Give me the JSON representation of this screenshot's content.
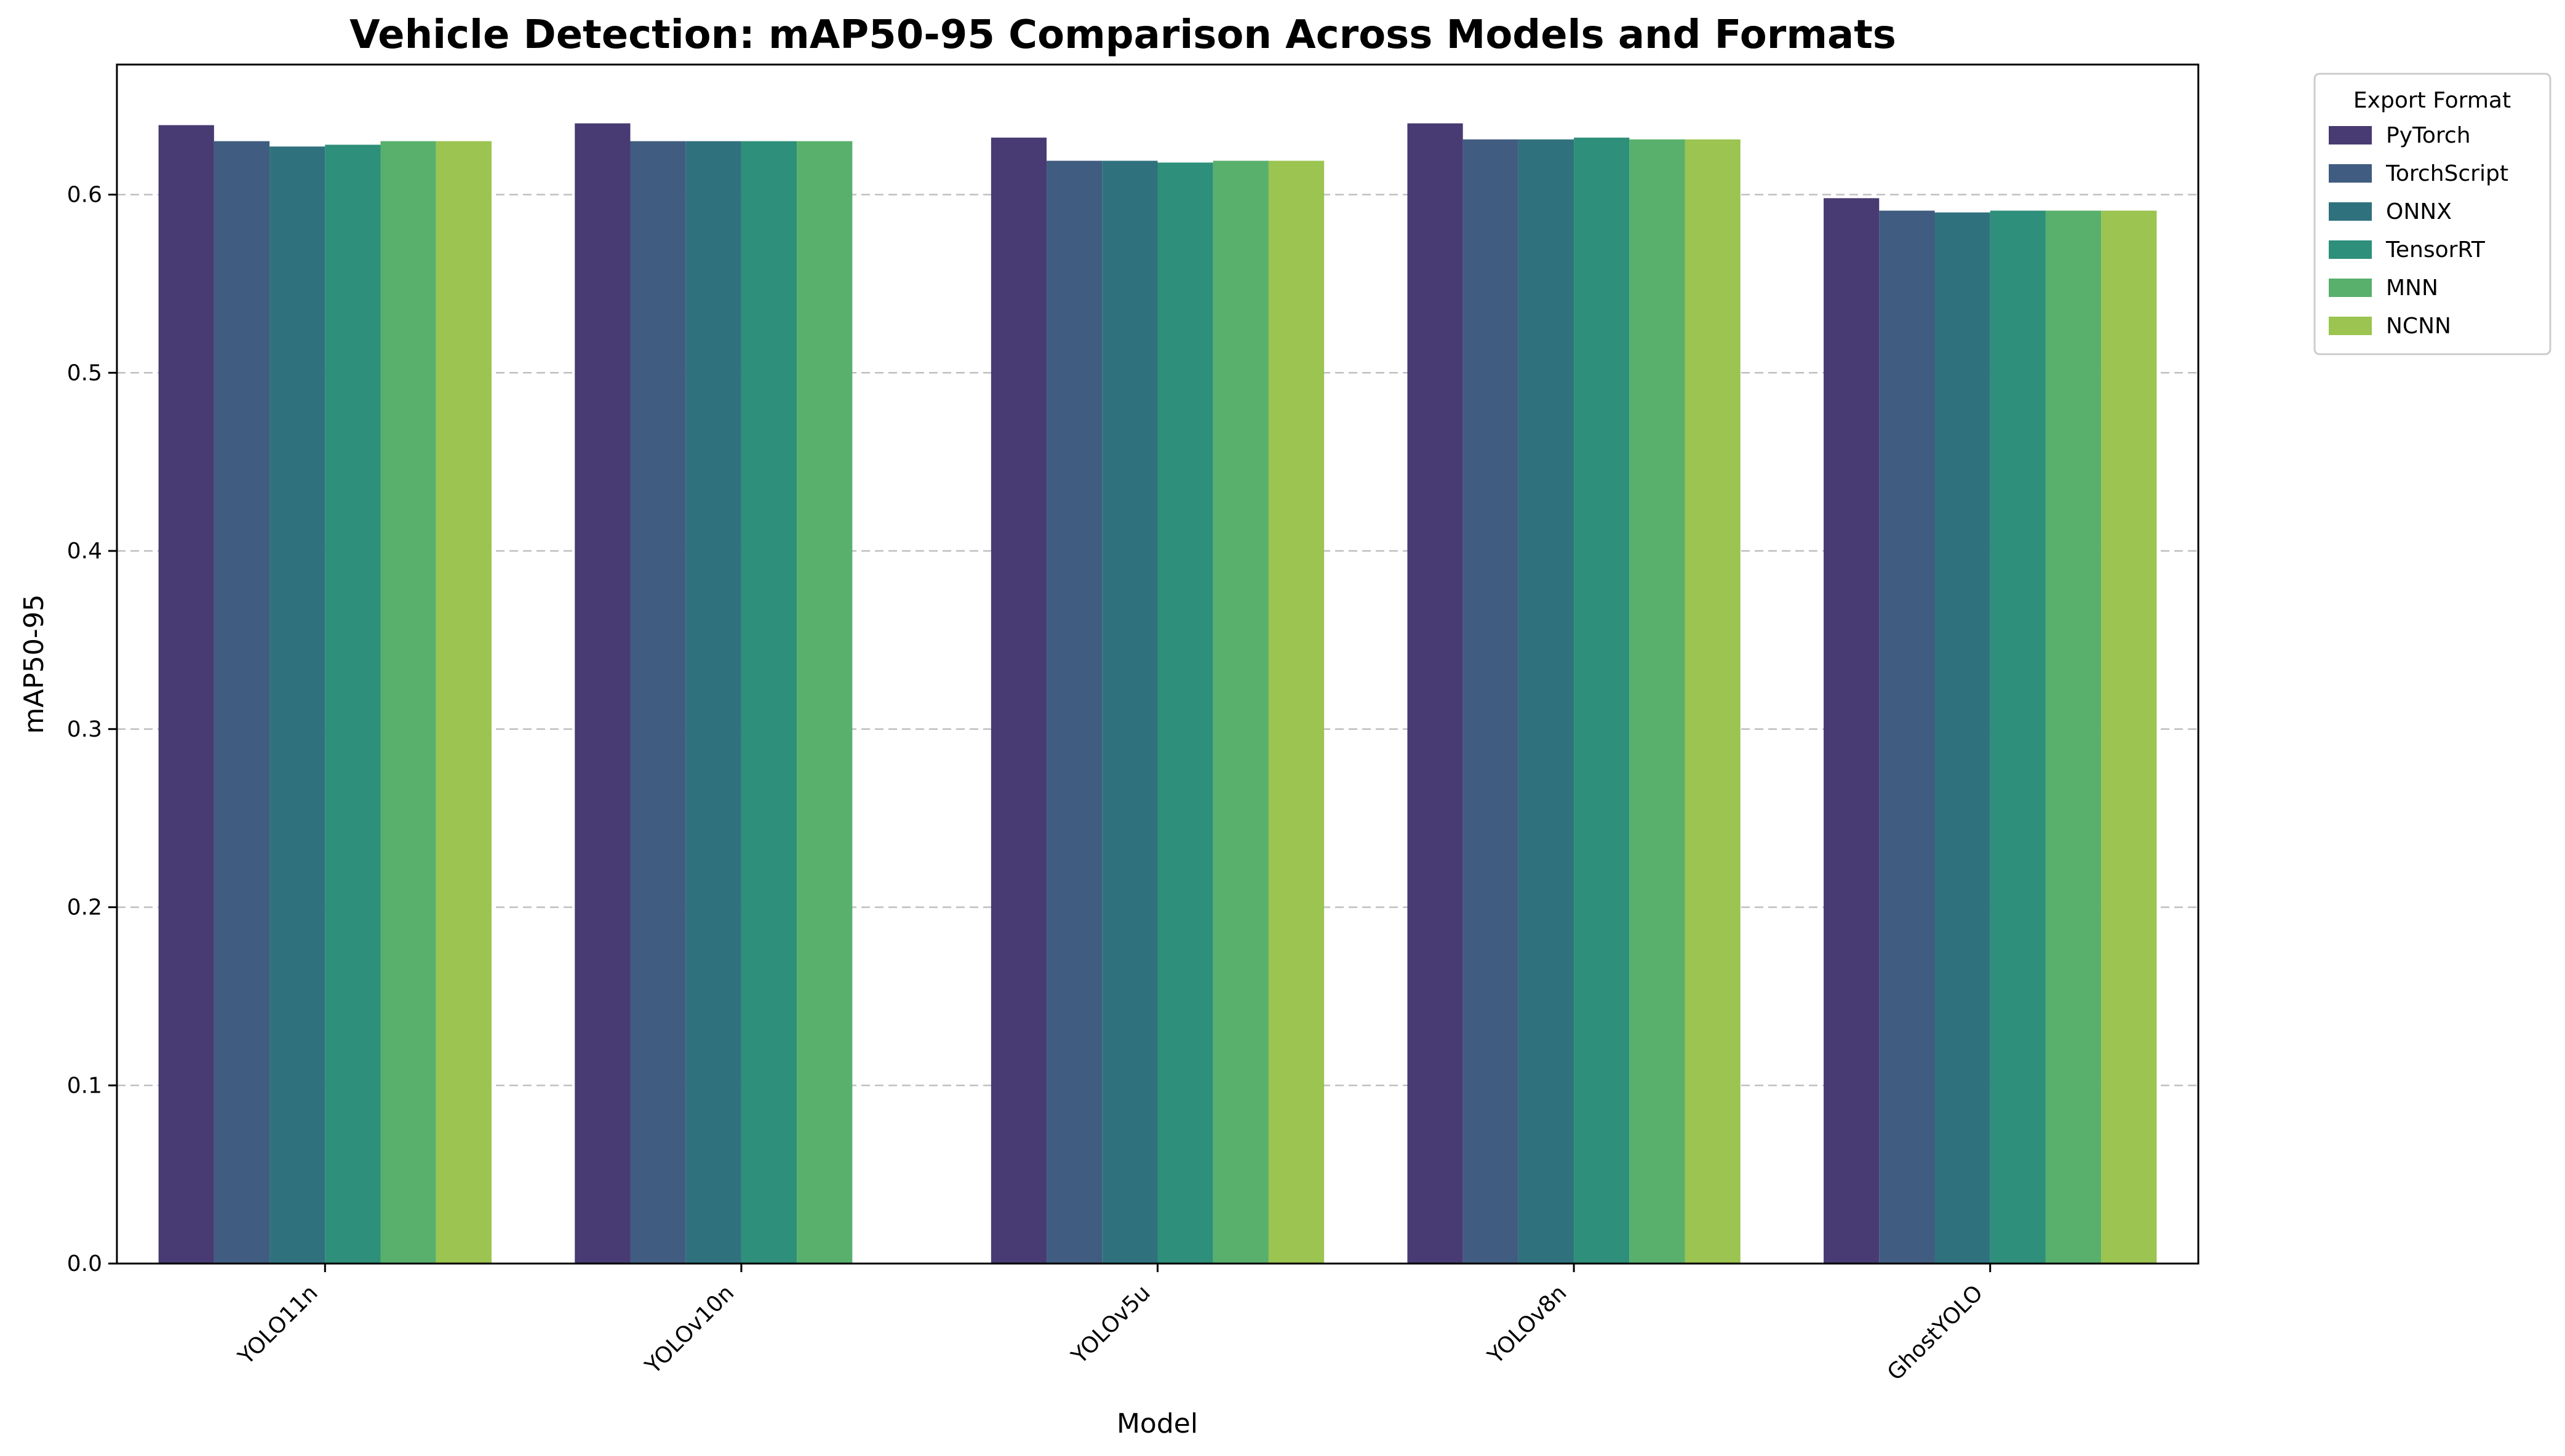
{
  "chart_data": {
    "type": "bar",
    "title": "Vehicle Detection: mAP50-95 Comparison Across Models and Formats",
    "xlabel": "Model",
    "ylabel": "mAP50-95",
    "ylim": [
      0,
      0.673
    ],
    "yticks": [
      "0.0",
      "0.1",
      "0.2",
      "0.3",
      "0.4",
      "0.5",
      "0.6"
    ],
    "grid": "horizontal dashed",
    "legend_placement": "outside upper right",
    "legend_title": "Export Format",
    "categories": [
      "YOLO11n",
      "YOLOv10n",
      "YOLOv5u",
      "YOLOv8n",
      "GhostYOLO"
    ],
    "series": [
      {
        "name": "PyTorch",
        "color": "#483a72",
        "values": [
          0.639,
          0.64,
          0.632,
          0.64,
          0.598
        ]
      },
      {
        "name": "TorchScript",
        "color": "#405c80",
        "values": [
          0.63,
          0.63,
          0.619,
          0.631,
          0.591
        ]
      },
      {
        "name": "ONNX",
        "color": "#30717e",
        "values": [
          0.627,
          0.63,
          0.619,
          0.631,
          0.59
        ]
      },
      {
        "name": "TensorRT",
        "color": "#2e8f7a",
        "values": [
          0.628,
          0.63,
          0.618,
          0.632,
          0.591
        ]
      },
      {
        "name": "MNN",
        "color": "#58b06c",
        "values": [
          0.63,
          0.63,
          0.619,
          0.631,
          0.591
        ]
      },
      {
        "name": "NCNN",
        "color": "#9bc450",
        "values": [
          0.63,
          null,
          0.619,
          0.631,
          0.591
        ]
      }
    ]
  }
}
